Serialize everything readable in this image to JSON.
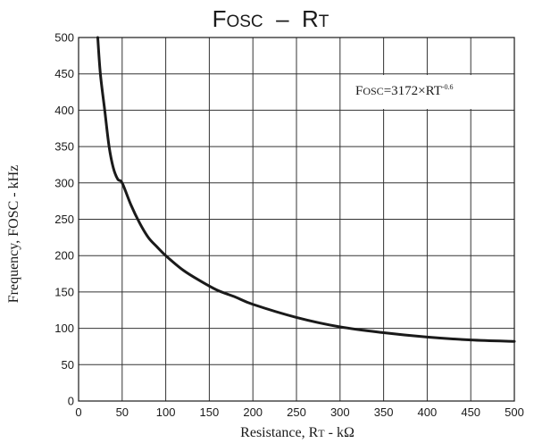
{
  "chart_data": {
    "type": "line",
    "title": {
      "p1": "F",
      "p2": "OSC",
      "p3": "  –  R",
      "p4": "T"
    },
    "xlabel": {
      "p1": "Resistance, R",
      "p2": "T",
      "p3": " - kΩ"
    },
    "ylabel": "Frequency, FOSC - kHz",
    "annotation": {
      "p1": "F",
      "p2": "OSC",
      "p3": "=3172×RT",
      "p4": "-0.6"
    },
    "xlim": [
      0,
      500
    ],
    "ylim": [
      0,
      500
    ],
    "x_ticks": [
      0,
      50,
      100,
      150,
      200,
      250,
      300,
      350,
      400,
      450,
      500
    ],
    "y_ticks": [
      0,
      50,
      100,
      150,
      200,
      250,
      300,
      350,
      400,
      450,
      500
    ],
    "grid": true,
    "series": [
      {
        "x": [
          22,
          25,
          30,
          35,
          40,
          45,
          50,
          60,
          70,
          80,
          90,
          100,
          120,
          140,
          160,
          180,
          200,
          250,
          300,
          350,
          400,
          450,
          500
        ],
        "y": [
          500,
          450,
          400,
          350,
          320,
          305,
          300,
          270,
          245,
          225,
          212,
          200,
          180,
          165,
          152,
          143,
          133,
          115,
          102,
          94,
          88,
          84,
          82
        ]
      }
    ],
    "line_color": "#1a1a1a",
    "grid_color": "#333333"
  }
}
